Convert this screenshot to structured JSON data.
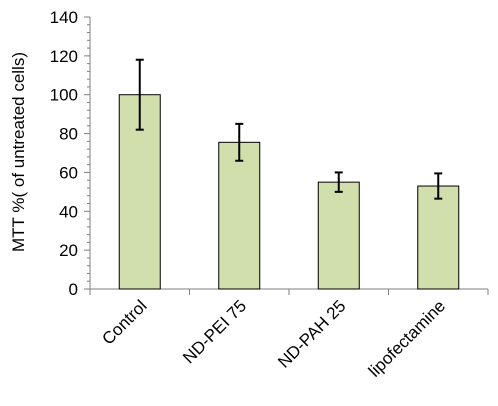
{
  "chart_data": {
    "type": "bar",
    "categories": [
      "Control",
      "ND-PEI 75",
      "ND-PAH 25",
      "lipofectamine"
    ],
    "values": [
      100,
      75.5,
      55,
      53
    ],
    "errors": [
      18,
      9.5,
      5,
      6.5
    ],
    "ylabel": "MTT %( of untreated cells)",
    "xlabel": "",
    "title": "",
    "ylim": [
      0,
      140
    ],
    "yticks": [
      0,
      20,
      40,
      60,
      80,
      100,
      120,
      140
    ],
    "grid": false,
    "legend": "none",
    "bar_color": "#d0dfac",
    "bar_edge_color": "#000000",
    "axis_color": "#7f7f7f"
  }
}
